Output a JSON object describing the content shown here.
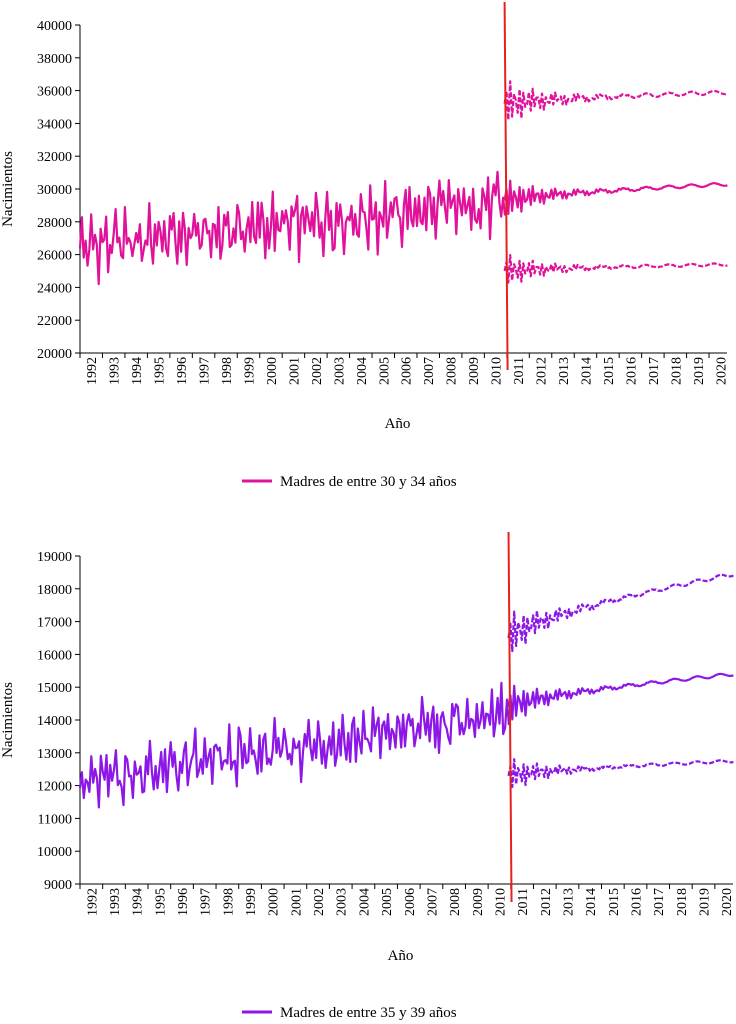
{
  "chart_data": [
    {
      "type": "line",
      "xlabel": "Año",
      "ylabel": "Nacimientos",
      "ylim": [
        20000,
        40000
      ],
      "yticks": [
        20000,
        22000,
        24000,
        26000,
        28000,
        30000,
        32000,
        34000,
        36000,
        38000,
        40000
      ],
      "xlim": [
        1992,
        2020.8
      ],
      "xticks": [
        "1992",
        "1993",
        "1994",
        "1995",
        "1996",
        "1997",
        "1998",
        "1999",
        "2000",
        "2001",
        "2002",
        "2003",
        "2004",
        "2005",
        "2006",
        "2007",
        "2008",
        "2009",
        "2010",
        "2011",
        "2012",
        "2013",
        "2014",
        "2015",
        "2016",
        "2017",
        "2018",
        "2019",
        "2020"
      ],
      "forecast_start": 2010.9,
      "color": "#e0119a",
      "vline_color": "#e8201c",
      "legend": "Madres de entre 30 y 34 años",
      "legend_position": "bottom",
      "history": {
        "start": 1992.0,
        "end": 2010.9,
        "base_start": 26500,
        "base_end": 29200,
        "seasonal_amplitude": 1900
      },
      "forecast": {
        "center_start": 29300,
        "center_end": 30300,
        "upper_start": 35200,
        "upper_end": 35900,
        "lower_start": 25000,
        "lower_end": 25400
      }
    },
    {
      "type": "line",
      "xlabel": "Año",
      "ylabel": "Nacimientos",
      "ylim": [
        9000,
        19000
      ],
      "yticks": [
        9000,
        10000,
        11000,
        12000,
        13000,
        14000,
        15000,
        16000,
        17000,
        18000,
        19000
      ],
      "xlim": [
        1992,
        2020.8
      ],
      "xticks": [
        "1992",
        "1993",
        "1994",
        "1995",
        "1996",
        "1997",
        "1998",
        "1999",
        "2000",
        "2001",
        "2002",
        "2003",
        "2004",
        "2005",
        "2006",
        "2007",
        "2008",
        "2009",
        "2010",
        "2011",
        "2012",
        "2013",
        "2014",
        "2015",
        "2016",
        "2017",
        "2018",
        "2019",
        "2020"
      ],
      "forecast_start": 2010.9,
      "color": "#8d17e6",
      "vline_color": "#e8201c",
      "legend": "Madres de entre 35 y 39 años",
      "legend_position": "bottom",
      "history": {
        "start": 1992.0,
        "end": 2010.9,
        "base_start": 12100,
        "base_end": 14200,
        "seasonal_amplitude": 900
      },
      "forecast": {
        "center_start": 14400,
        "center_end": 15400,
        "upper_start": 16500,
        "upper_end": 18450,
        "lower_start": 12300,
        "lower_end": 12750
      }
    }
  ]
}
